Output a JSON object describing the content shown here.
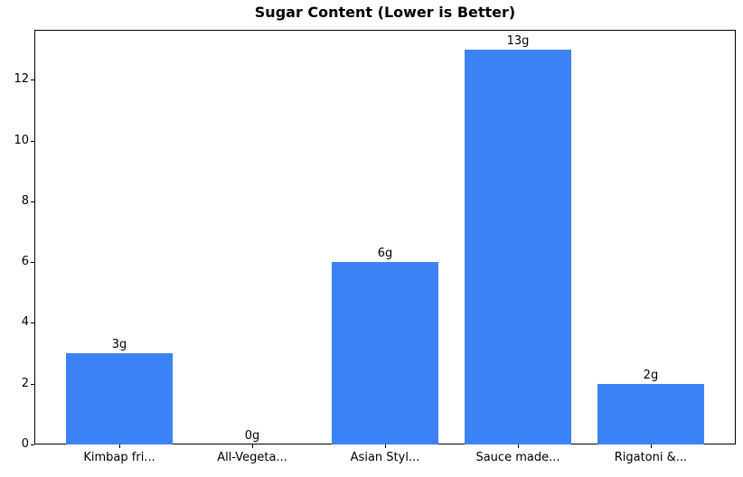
{
  "chart_data": {
    "type": "bar",
    "title": "Sugar Content (Lower is Better)",
    "categories": [
      "Kimbap fri...",
      "All-Vegeta...",
      "Asian Styl...",
      "Sauce made...",
      "Rigatoni &..."
    ],
    "values": [
      3,
      0,
      6,
      13,
      2
    ],
    "value_labels": [
      "3g",
      "0g",
      "6g",
      "13g",
      "2g"
    ],
    "yticks": [
      0,
      2,
      4,
      6,
      8,
      10,
      12
    ],
    "ylim": [
      0,
      13.65
    ],
    "xlabel": "",
    "ylabel": "",
    "grid": false,
    "legend": null,
    "bar_color": "#3b82f6",
    "frame_color": "#000000",
    "text_color": "#000000",
    "background_color": "#ffffff",
    "bar_width_fraction": 0.8
  }
}
